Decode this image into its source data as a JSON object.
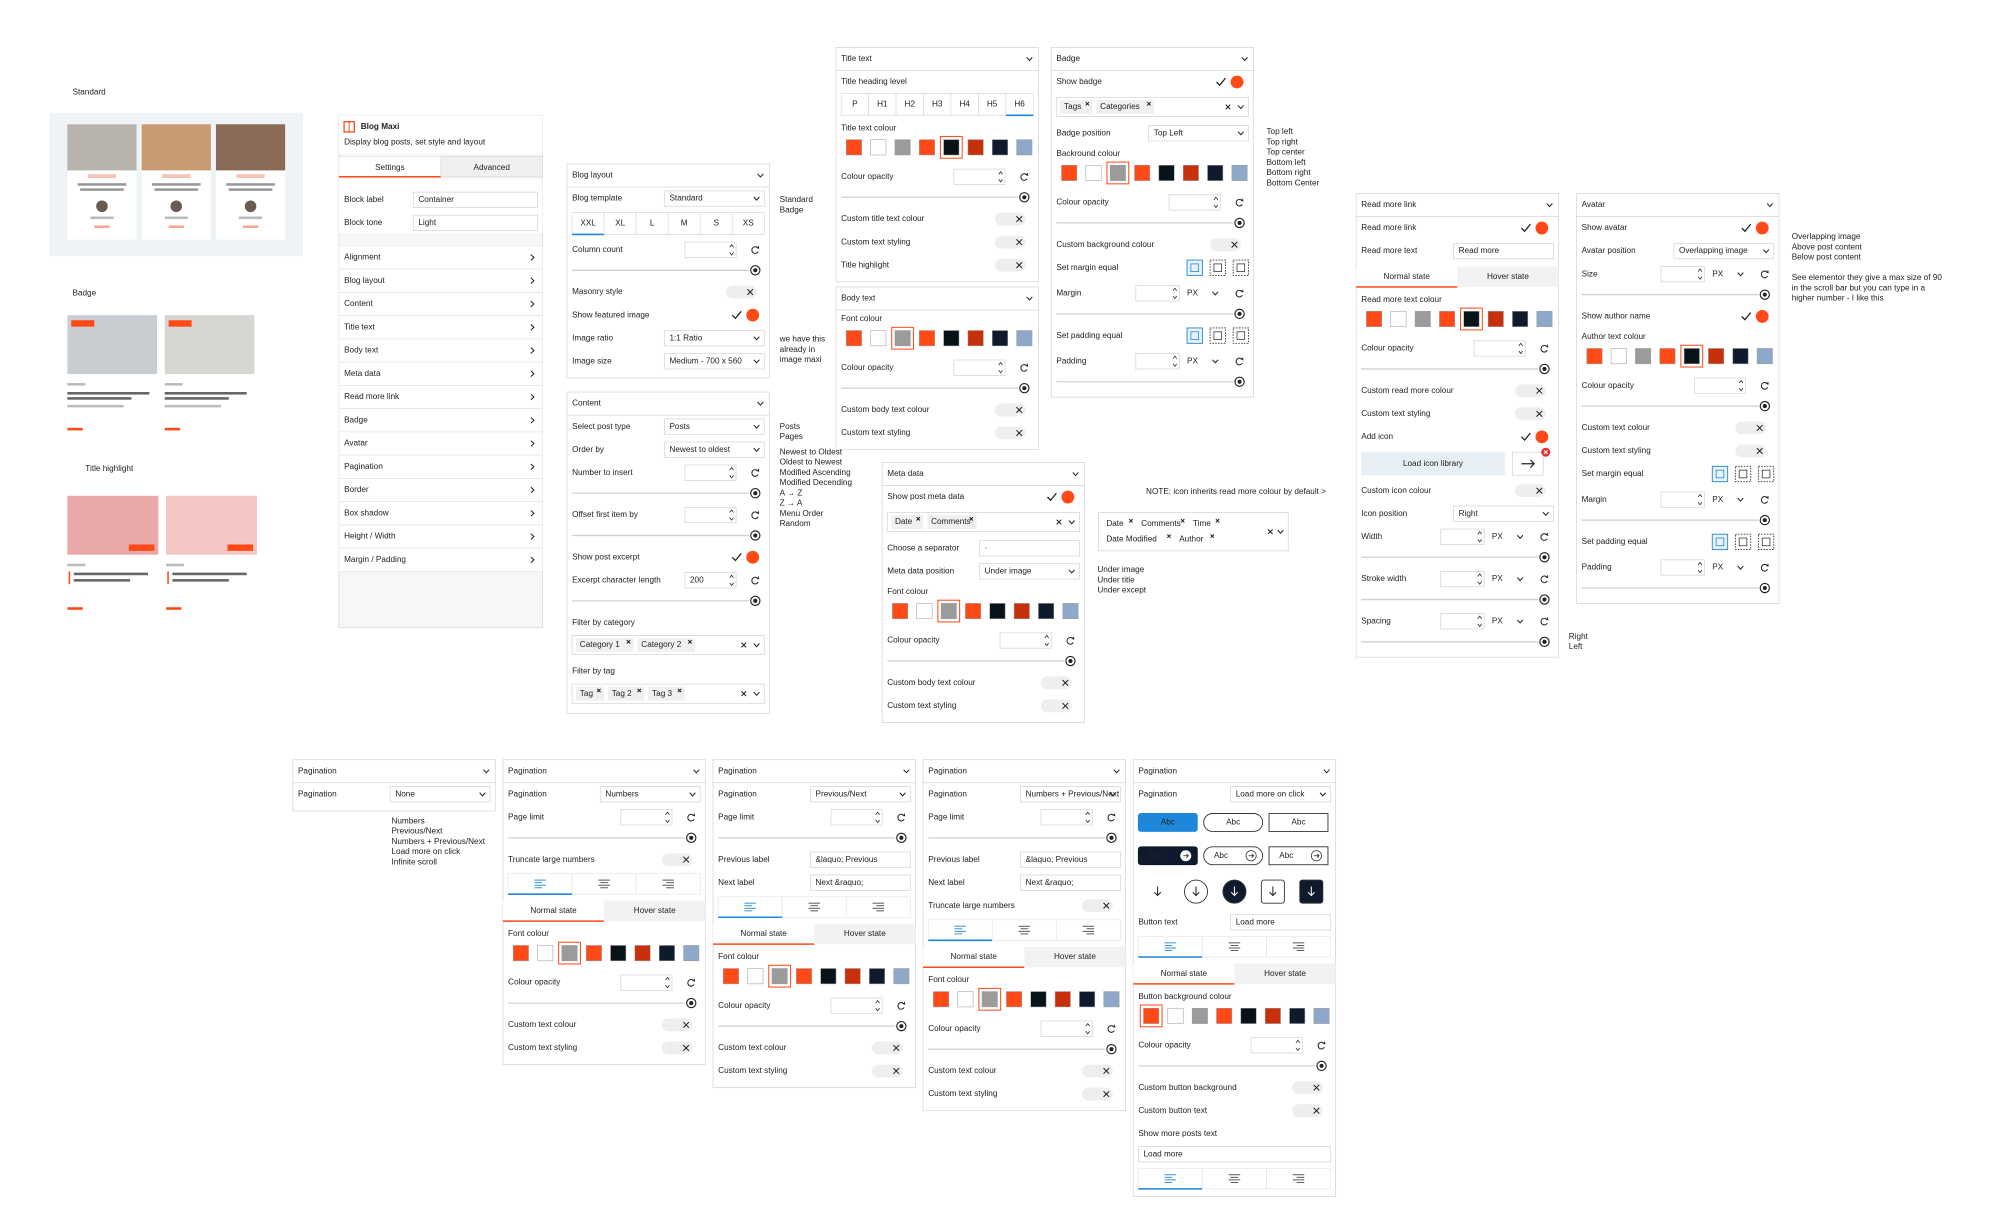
{
  "thumbs": {
    "standard": "Standard",
    "badge": "Badge",
    "highlight": "Title highlight"
  },
  "palette": [
    "#ff4a17",
    "#ffffff",
    "#9b9b9b",
    "#ff4a17",
    "#081219",
    "#c8300c",
    "#0f1b2d",
    "#8da8c8"
  ],
  "sidebar": {
    "title": "Blog Maxi",
    "subtitle": "Display blog posts, set style and layout",
    "tabs": [
      "Settings",
      "Advanced"
    ],
    "fields": [
      {
        "label": "Block label",
        "input": "Container"
      },
      {
        "label": "Block tone",
        "input": "Light"
      }
    ],
    "menu": [
      "Alignment",
      "Blog layout",
      "Content",
      "Title text",
      "Body text",
      "Meta data",
      "Read more link",
      "Badge",
      "Avatar",
      "Pagination",
      "Border",
      "Box shadow",
      "Height / Width",
      "Margin / Padding"
    ]
  },
  "panels": [
    {
      "title": "Blog layout",
      "rows": [
        {
          "label": "Blog template",
          "select": "Standard"
        },
        {
          "buttons": [
            "XXL",
            "XL",
            "L",
            "M",
            "S",
            "XS"
          ],
          "active": 0
        },
        {
          "label": "Column count",
          "slider": true
        },
        {
          "label": "Masonry style",
          "toggle": false
        },
        {
          "label": "Show featured image",
          "toggle": true
        },
        {
          "label": "Image ratio",
          "select": "1:1 Ratio"
        },
        {
          "label": "Image size",
          "select": "Medium - 700 x 560"
        }
      ]
    },
    {
      "title": "Content",
      "rows": [
        {
          "label": "Select post type",
          "select": "Posts"
        },
        {
          "label": "Order by",
          "select": "Newest to oldest"
        },
        {
          "label": "Number to insert",
          "slider": true
        },
        {
          "label": "Offset first item by",
          "slider": true
        },
        {
          "label": "Show post excerpt",
          "toggle": true
        },
        {
          "label": "Excerpt character length",
          "slider": true,
          "value": 200
        },
        {
          "label": "Filter by category"
        },
        {
          "tags": [
            "Category 1",
            "Category 2"
          ]
        },
        {
          "label": "Filter by tag"
        },
        {
          "tags": [
            "Tag",
            "Tag 2",
            "Tag 3"
          ]
        }
      ]
    },
    {
      "title": "Title text",
      "rows": [
        {
          "label": "Title heading level"
        },
        {
          "buttons": [
            "P",
            "H1",
            "H2",
            "H3",
            "H4",
            "H5",
            "H6"
          ],
          "active": 6
        },
        {
          "label": "Title text colour",
          "swatches": true,
          "selected": 4
        },
        {
          "label": "Colour opacity",
          "slider": true
        },
        {
          "label": "Custom title text colour",
          "toggle": false
        },
        {
          "label": "Custom text styling",
          "toggle": false
        },
        {
          "label": "Title highlight",
          "toggle": false
        }
      ]
    },
    {
      "title": "Body text",
      "rows": [
        {
          "label": "Font colour",
          "swatches": true,
          "selected": 2
        },
        {
          "label": "Colour opacity",
          "slider": true
        },
        {
          "label": "Custom body text colour",
          "toggle": false
        },
        {
          "label": "Custom text styling",
          "toggle": false
        }
      ]
    },
    {
      "title": "Badge",
      "rows": [
        {
          "label": "Show badge",
          "toggle": true
        },
        {
          "tags": [
            "Tags",
            "Categories"
          ]
        },
        {
          "label": "Badge position",
          "select": "Top Left"
        },
        {
          "label": "Backround colour",
          "swatches": true,
          "selected": 2
        },
        {
          "label": "Colour opacity",
          "slider": true
        },
        {
          "label": "Custom background colour",
          "toggle": false
        },
        {
          "label": "Set margin equal",
          "icons": true
        },
        {
          "label": "Margin",
          "slider": true,
          "unit": "PX"
        },
        {
          "label": "Set padding equal",
          "icons": true
        },
        {
          "label": "Padding",
          "slider": true,
          "unit": "PX"
        }
      ]
    },
    {
      "title": "Meta data",
      "rows": [
        {
          "label": "Show post meta data",
          "toggle": true
        },
        {
          "tags": [
            "Date",
            "Comments"
          ]
        },
        {
          "label": "Choose a separator",
          "input": "·"
        },
        {
          "label": "Meta data position",
          "select": "Under image"
        },
        {
          "label": "Font colour",
          "swatches": true,
          "selected": 2
        },
        {
          "label": "Colour opacity",
          "slider": true
        },
        {
          "label": "Custom body text colour",
          "toggle": false
        },
        {
          "label": "Custom text styling",
          "toggle": false
        }
      ]
    },
    {
      "title": "Read more link",
      "rows": [
        {
          "label": "Read more link",
          "toggle": true
        },
        {
          "label": "Read more text",
          "input": "Read more"
        },
        {
          "tabs": [
            "Normal state",
            "Hover state"
          ],
          "active": 0
        },
        {
          "label": "Read more text colour",
          "swatches": true,
          "selected": 4
        },
        {
          "label": "Colour opacity",
          "slider": true
        },
        {
          "label": "Custom read more colour",
          "toggle": false
        },
        {
          "label": "Custom text styling",
          "toggle": false
        },
        {
          "label": "Add icon",
          "toggle": true
        },
        {
          "link": "Load icon library"
        },
        {
          "label": "Custom icon colour",
          "toggle": false
        },
        {
          "label": "Icon position",
          "select": "Right"
        },
        {
          "label": "Width",
          "slider": true,
          "unit": "PX"
        },
        {
          "label": "Stroke width",
          "slider": true,
          "unit": "PX"
        },
        {
          "label": "Spacing",
          "slider": true,
          "unit": "PX"
        }
      ]
    },
    {
      "title": "Avatar",
      "rows": [
        {
          "label": "Show avatar",
          "toggle": true
        },
        {
          "label": "Avatar position",
          "select": "Overlapping image"
        },
        {
          "label": "Size",
          "slider": true,
          "unit": "PX"
        },
        {
          "label": "Show author name",
          "toggle": true
        },
        {
          "label": "Author text colour",
          "swatches": true,
          "selected": 4
        },
        {
          "label": "Colour opacity",
          "slider": true
        },
        {
          "label": "Custom text colour",
          "toggle": false
        },
        {
          "label": "Custom text styling",
          "toggle": false
        },
        {
          "label": "Set margin equal",
          "icons": true
        },
        {
          "label": "Margin",
          "slider": true,
          "unit": "PX"
        },
        {
          "label": "Set padding equal",
          "icons": true
        },
        {
          "label": "Padding",
          "slider": true,
          "unit": "PX"
        }
      ]
    },
    {
      "title": "Pagination",
      "rows": [
        {
          "label": "Pagination",
          "select": "None"
        }
      ]
    },
    {
      "title": "Pagination",
      "rows": [
        {
          "label": "Pagination",
          "select": "Numbers"
        },
        {
          "label": "Page limit",
          "slider": true
        },
        {
          "label": "Truncate large numbers",
          "toggle": false
        },
        {
          "align": true
        },
        {
          "tabs": [
            "Normal state",
            "Hover state"
          ],
          "active": 0
        },
        {
          "label": "Font colour",
          "swatches": true,
          "selected": 2
        },
        {
          "label": "Colour opacity",
          "slider": true
        },
        {
          "label": "Custom text colour",
          "toggle": false
        },
        {
          "label": "Custom text styling",
          "toggle": false
        }
      ]
    },
    {
      "title": "Pagination",
      "rows": [
        {
          "label": "Pagination",
          "select": "Previous/Next"
        },
        {
          "label": "Page limit",
          "slider": true
        },
        {
          "label": "Previous label",
          "input": "&laquo; Previous"
        },
        {
          "label": "Next label",
          "input": "Next &raquo;"
        },
        {
          "align": true
        },
        {
          "tabs": [
            "Normal state",
            "Hover state"
          ],
          "active": 0
        },
        {
          "label": "Font colour",
          "swatches": true,
          "selected": 2
        },
        {
          "label": "Colour opacity",
          "slider": true
        },
        {
          "label": "Custom text colour",
          "toggle": false
        },
        {
          "label": "Custom text styling",
          "toggle": false
        }
      ]
    },
    {
      "title": "Pagination",
      "rows": [
        {
          "label": "Pagination",
          "select": "Numbers + Previous/Next"
        },
        {
          "label": "Page limit",
          "slider": true
        },
        {
          "label": "Previous label",
          "input": "&laquo; Previous"
        },
        {
          "label": "Next label",
          "input": "Next &raquo;"
        },
        {
          "label": "Truncate large numbers",
          "toggle": false
        },
        {
          "align": true
        },
        {
          "tabs": [
            "Normal state",
            "Hover state"
          ],
          "active": 0
        },
        {
          "label": "Font colour",
          "swatches": true,
          "selected": 2
        },
        {
          "label": "Colour opacity",
          "slider": true
        },
        {
          "label": "Custom text colour",
          "toggle": false
        },
        {
          "label": "Custom text styling",
          "toggle": false
        }
      ]
    },
    {
      "title": "Pagination",
      "rows": [
        {
          "label": "Pagination",
          "select": "Load more on click"
        },
        {
          "styles": [
            "Abc",
            "Abc",
            "Abc"
          ]
        },
        {
          "styles": [
            "Abc",
            "Abc",
            "Abc"
          ],
          "arrow": true
        },
        {
          "icon_buttons": true
        },
        {
          "label": "Button text",
          "input": "Load more"
        },
        {
          "align": true
        },
        {
          "tabs": [
            "Normal state",
            "Hover state"
          ],
          "active": 0
        },
        {
          "label": "Button background colour",
          "swatches": true,
          "selected": 0
        },
        {
          "label": "Colour opacity",
          "slider": true
        },
        {
          "label": "Custom button background",
          "toggle": false
        },
        {
          "label": "Custom button text",
          "toggle": false
        },
        {
          "label": "Show more posts text"
        },
        {
          "input": "Load more"
        },
        {
          "align": true
        }
      ]
    }
  ],
  "tag_box": {
    "tags": [
      "Date",
      "Comments",
      "Time",
      "Date Modified",
      "Author"
    ]
  },
  "notes": [
    {
      "lines": [
        "Standard",
        "Badge"
      ]
    },
    {
      "lines": [
        "we have this",
        "already in",
        "image maxi"
      ]
    },
    {
      "lines": [
        "Posts",
        "Pages"
      ]
    },
    {
      "lines": [
        "Newest to Oldest",
        "Oldest to Newest",
        "Modified Ascending",
        "Modified Decending",
        "A → Z",
        "Z → A",
        "Menu Order",
        "Random"
      ]
    },
    {
      "lines": [
        "Top left",
        "Top right",
        "Top center",
        "Bottom left",
        "Bottom right",
        "Bottom Center"
      ]
    },
    {
      "lines": [
        "NOTE: icon inherits read more colour by default >"
      ]
    },
    {
      "lines": [
        "Under image",
        "Under title",
        "Under except"
      ]
    },
    {
      "lines": [
        "Right",
        "Left"
      ]
    },
    {
      "lines": [
        "Overlapping image",
        "Above post content",
        "Below post content"
      ]
    },
    {
      "lines": [
        "See elementor they give a max size of 90",
        "in the scroll bar but you can type in a",
        "higher number - I like this"
      ]
    },
    {
      "lines": [
        "Numbers",
        "Previous/Next",
        "Numbers + Previous/Next",
        "Load more on click",
        "Infinite scroll"
      ]
    }
  ]
}
